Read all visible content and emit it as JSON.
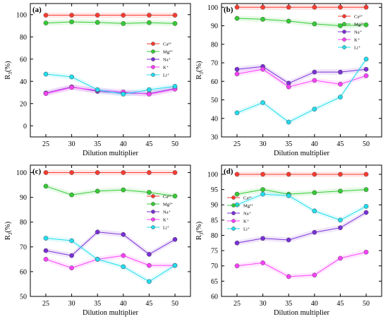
{
  "chart_data": [
    {
      "type": "line",
      "panel_label": "(a)",
      "xlabel": "Dilution multiplier",
      "ylabel_main": "R",
      "ylabel_sub": "3",
      "ylabel_suffix": "(%)",
      "x": [
        25,
        30,
        35,
        40,
        45,
        50
      ],
      "xlim": [
        22,
        53
      ],
      "ylim": [
        -10,
        110
      ],
      "yticks": [
        0,
        20,
        40,
        60,
        80,
        100
      ],
      "legend_position": "right",
      "series": [
        {
          "name": "Ca²⁺",
          "color": "#ff3b30",
          "values": [
            99.5,
            99.5,
            99.5,
            99.5,
            99.5,
            99.5
          ]
        },
        {
          "name": "Mg²⁺",
          "color": "#33cc33",
          "values": [
            92.5,
            93.5,
            93,
            92,
            92.8,
            92
          ]
        },
        {
          "name": "Na⁺",
          "color": "#7a2fd9",
          "values": [
            29.5,
            35,
            31,
            29.5,
            29,
            33.5
          ]
        },
        {
          "name": "K⁺",
          "color": "#ff40ff",
          "values": [
            29,
            34.5,
            32,
            30.5,
            28.5,
            33
          ]
        },
        {
          "name": "Li⁺",
          "color": "#22ddee",
          "values": [
            46.5,
            44,
            32.5,
            28.5,
            32.5,
            35.5
          ]
        }
      ]
    },
    {
      "type": "line",
      "panel_label": "(b)",
      "xlabel": "Dilution multiplier",
      "ylabel_main": "R",
      "ylabel_sub": "3",
      "ylabel_suffix": "(%)",
      "x": [
        25,
        30,
        35,
        40,
        45,
        50
      ],
      "xlim": [
        22,
        53
      ],
      "ylim": [
        30,
        102
      ],
      "yticks": [
        30,
        40,
        50,
        60,
        70,
        80,
        90,
        100
      ],
      "legend_position": "right",
      "series": [
        {
          "name": "Ca²⁺",
          "color": "#ff3b30",
          "values": [
            100,
            100,
            100,
            100,
            100,
            100
          ]
        },
        {
          "name": "Mg²⁺",
          "color": "#33cc33",
          "values": [
            94,
            93.5,
            92.5,
            91,
            90,
            90.5
          ]
        },
        {
          "name": "Na⁺",
          "color": "#7a2fd9",
          "values": [
            66.5,
            68,
            59,
            65,
            65,
            66.5
          ]
        },
        {
          "name": "K⁺",
          "color": "#ff40ff",
          "values": [
            64,
            66.5,
            57,
            60.5,
            58.5,
            63
          ]
        },
        {
          "name": "Li⁺",
          "color": "#22ddee",
          "values": [
            43,
            48.5,
            38,
            45,
            51.5,
            72
          ]
        }
      ]
    },
    {
      "type": "line",
      "panel_label": "(c)",
      "xlabel": "Dilution multiplier",
      "ylabel_main": "R",
      "ylabel_sub": "3",
      "ylabel_suffix": "(%)",
      "x": [
        25,
        30,
        35,
        40,
        45,
        50
      ],
      "xlim": [
        22,
        53
      ],
      "ylim": [
        50,
        103
      ],
      "yticks": [
        50,
        60,
        70,
        80,
        90,
        100
      ],
      "legend_position": "right",
      "series": [
        {
          "name": "Ca²⁺",
          "color": "#ff3b30",
          "values": [
            100,
            100,
            100,
            100,
            100,
            100
          ]
        },
        {
          "name": "Mg²⁺",
          "color": "#33cc33",
          "values": [
            94.5,
            91,
            92.5,
            93,
            92,
            90.5
          ]
        },
        {
          "name": "Na⁺",
          "color": "#7a2fd9",
          "values": [
            68.5,
            66.5,
            76,
            75,
            67,
            73
          ]
        },
        {
          "name": "K⁺",
          "color": "#ff40ff",
          "values": [
            65,
            61.5,
            65,
            66.5,
            62.5,
            62.5
          ]
        },
        {
          "name": "Li⁺",
          "color": "#22ddee",
          "values": [
            73.5,
            72.5,
            65,
            62,
            56,
            62.5
          ]
        }
      ]
    },
    {
      "type": "line",
      "panel_label": "(d)",
      "xlabel": "Dilution multiplier",
      "ylabel_main": "R",
      "ylabel_sub": "3",
      "ylabel_suffix": "(%)",
      "x": [
        25,
        30,
        35,
        40,
        45,
        50
      ],
      "xlim": [
        22,
        53
      ],
      "ylim": [
        60,
        103
      ],
      "yticks": [
        60,
        65,
        70,
        75,
        80,
        85,
        90,
        95,
        100
      ],
      "legend_position": "left",
      "series": [
        {
          "name": "Ca²⁺",
          "color": "#ff3b30",
          "values": [
            100,
            100,
            100,
            100,
            100,
            100
          ]
        },
        {
          "name": "Mg²⁺",
          "color": "#33cc33",
          "values": [
            93.5,
            95,
            93.5,
            94,
            94.5,
            95
          ]
        },
        {
          "name": "Na⁺",
          "color": "#7a2fd9",
          "values": [
            77.5,
            79,
            78.5,
            81,
            82.5,
            87.5
          ]
        },
        {
          "name": "K⁺",
          "color": "#ff40ff",
          "values": [
            70,
            71,
            66.5,
            67,
            72.5,
            74.5
          ]
        },
        {
          "name": "Li⁺",
          "color": "#22ddee",
          "values": [
            90,
            93.5,
            93,
            88,
            85,
            89.5
          ]
        }
      ]
    }
  ]
}
